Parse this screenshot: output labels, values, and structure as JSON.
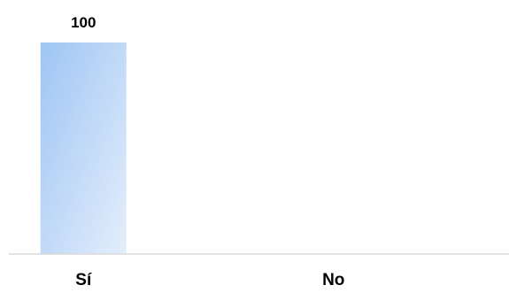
{
  "chart_data": {
    "type": "bar",
    "categories": [
      "Sí",
      "No"
    ],
    "values": [
      100,
      0
    ],
    "data_labels": [
      "100",
      ""
    ],
    "ylim": [
      0,
      100
    ],
    "grid": false,
    "legend": "none",
    "colors": {
      "bar_gradient_start": "#9ec5f4",
      "bar_gradient_end": "#e4eefb",
      "axis": "#d9d9d9",
      "text": "#000000"
    }
  }
}
